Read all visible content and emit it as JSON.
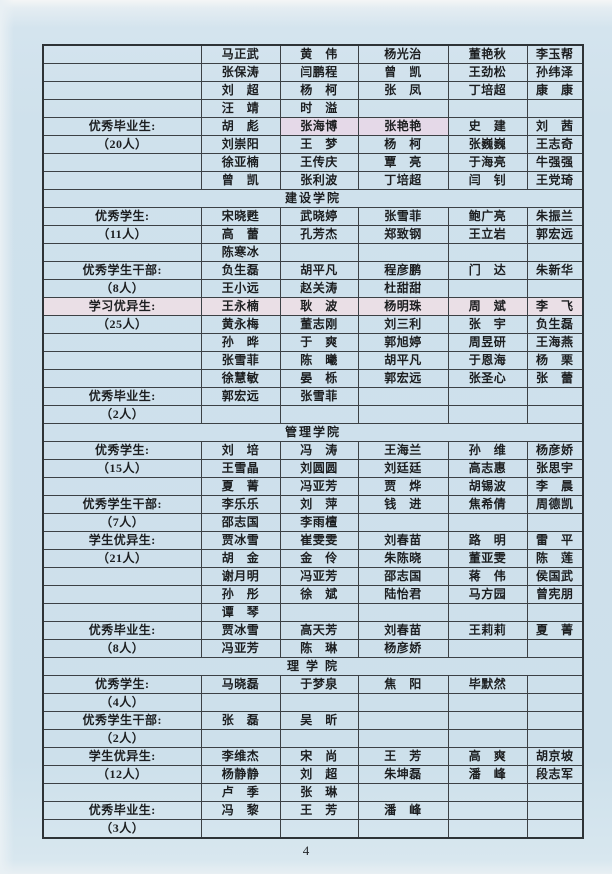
{
  "page": {
    "number": "4"
  },
  "colors": {
    "page_bg": "#cfe1ec",
    "cell_highlight": "#e5d9e8",
    "row_tint": "#eadfe6",
    "border": "#3c4145"
  },
  "table": {
    "columns": 6,
    "sections": [
      {
        "header": null,
        "rows": [
          {
            "label": "",
            "cells": [
              "马正武",
              "黄　伟",
              "杨光治",
              "董艳秋",
              "李玉帮"
            ]
          },
          {
            "label": "",
            "cells": [
              "张保涛",
              "闫鹏程",
              "曾　凯",
              "王劲松",
              "孙纬泽"
            ]
          },
          {
            "label": "",
            "cells": [
              "刘　超",
              "杨　柯",
              "张　凤",
              "丁培超",
              "康　康"
            ]
          },
          {
            "label": "",
            "cells": [
              "汪　靖",
              "时　溢",
              "",
              "",
              ""
            ]
          },
          {
            "label": "优秀毕业生:",
            "cells": [
              "胡　彪",
              "张海博",
              "张艳艳",
              "史　建",
              "刘　茜"
            ],
            "hl": [
              1,
              2
            ]
          },
          {
            "label": "（20人）",
            "cells": [
              "刘崇阳",
              "王　梦",
              "杨　柯",
              "张巍巍",
              "王志奇"
            ]
          },
          {
            "label": "",
            "cells": [
              "徐亚楠",
              "王传庆",
              "覃　亮",
              "于海亮",
              "牛强强"
            ]
          },
          {
            "label": "",
            "cells": [
              "曾　凯",
              "张利波",
              "丁培超",
              "闫　钊",
              "王党琦"
            ]
          }
        ]
      },
      {
        "header": "建设学院",
        "rows": [
          {
            "label": "优秀学生:",
            "cells": [
              "宋晓甦",
              "武晓婷",
              "张雪菲",
              "鲍广亮",
              "朱振兰"
            ]
          },
          {
            "label": "（11人）",
            "cells": [
              "高　蕾",
              "孔芳杰",
              "郑致钢",
              "王立岩",
              "郭宏远"
            ]
          },
          {
            "label": "",
            "cells": [
              "陈寒冰",
              "",
              "",
              "",
              ""
            ]
          },
          {
            "label": "优秀学生干部:",
            "cells": [
              "负生磊",
              "胡平凡",
              "程彦鹏",
              "门　达",
              "朱新华"
            ]
          },
          {
            "label": "（8人）",
            "cells": [
              "王小远",
              "赵关涛",
              "杜甜甜",
              "",
              ""
            ]
          },
          {
            "label": "学习优异生:",
            "cells": [
              "王永楠",
              "耿　波",
              "杨明珠",
              "周　斌",
              "李　飞"
            ],
            "tint": true
          },
          {
            "label": "（25人）",
            "cells": [
              "黄永梅",
              "董志刚",
              "刘三利",
              "张　宇",
              "负生磊"
            ]
          },
          {
            "label": "",
            "cells": [
              "孙　晔",
              "于　爽",
              "郭旭婷",
              "周昱研",
              "王海燕"
            ]
          },
          {
            "label": "",
            "cells": [
              "张雪菲",
              "陈　曦",
              "胡平凡",
              "于恩海",
              "杨　栗"
            ]
          },
          {
            "label": "",
            "cells": [
              "徐慧敏",
              "晏　栎",
              "郭宏远",
              "张圣心",
              "张　蕾"
            ]
          },
          {
            "label": "优秀毕业生:",
            "cells": [
              "郭宏远",
              "张雪菲",
              "",
              "",
              ""
            ]
          },
          {
            "label": "（2人）",
            "cells": [
              "",
              "",
              "",
              "",
              ""
            ]
          }
        ]
      },
      {
        "header": "管理学院",
        "rows": [
          {
            "label": "优秀学生:",
            "cells": [
              "刘　培",
              "冯　涛",
              "王海兰",
              "孙　维",
              "杨彦娇"
            ]
          },
          {
            "label": "（15人）",
            "cells": [
              "王雪晶",
              "刘圆圆",
              "刘廷廷",
              "高志惠",
              "张思宇"
            ]
          },
          {
            "label": "",
            "cells": [
              "夏　菁",
              "冯亚芳",
              "贾　烨",
              "胡锡波",
              "李　晨"
            ]
          },
          {
            "label": "优秀学生干部:",
            "cells": [
              "李乐乐",
              "刘　萍",
              "钱　进",
              "焦希倩",
              "周德凯"
            ]
          },
          {
            "label": "（7人）",
            "cells": [
              "邵志国",
              "李雨檀",
              "",
              "",
              ""
            ]
          },
          {
            "label": "学生优异生:",
            "cells": [
              "贾冰雪",
              "崔雯雯",
              "刘春苗",
              "路　明",
              "雷　平"
            ]
          },
          {
            "label": "（21人）",
            "cells": [
              "胡　金",
              "金　伶",
              "朱陈晓",
              "董亚雯",
              "陈　莲"
            ]
          },
          {
            "label": "",
            "cells": [
              "谢月明",
              "冯亚芳",
              "邵志国",
              "蒋　伟",
              "侯国武"
            ]
          },
          {
            "label": "",
            "cells": [
              "孙　彤",
              "徐　斌",
              "陆怡君",
              "马方园",
              "曾宪朋"
            ]
          },
          {
            "label": "",
            "cells": [
              "谭　琴",
              "",
              "",
              "",
              ""
            ]
          },
          {
            "label": "优秀毕业生:",
            "cells": [
              "贾冰雪",
              "高天芳",
              "刘春苗",
              "王莉莉",
              "夏　菁"
            ]
          },
          {
            "label": "（8人）",
            "cells": [
              "冯亚芳",
              "陈　琳",
              "杨彦娇",
              "",
              ""
            ]
          }
        ]
      },
      {
        "header": "理 学 院",
        "rows": [
          {
            "label": "优秀学生:",
            "cells": [
              "马晓磊",
              "于梦泉",
              "焦　阳",
              "毕默然",
              ""
            ]
          },
          {
            "label": "（4人）",
            "cells": [
              "",
              "",
              "",
              "",
              ""
            ]
          },
          {
            "label": "优秀学生干部:",
            "cells": [
              "张　磊",
              "吴　昕",
              "",
              "",
              ""
            ]
          },
          {
            "label": "（2人）",
            "cells": [
              "",
              "",
              "",
              "",
              ""
            ]
          },
          {
            "label": "学生优异生:",
            "cells": [
              "李维杰",
              "宋　尚",
              "王　芳",
              "高　爽",
              "胡京坡"
            ]
          },
          {
            "label": "（12人）",
            "cells": [
              "杨静静",
              "刘　超",
              "朱坤磊",
              "潘　峰",
              "段志军"
            ]
          },
          {
            "label": "",
            "cells": [
              "卢　季",
              "张　琳",
              "",
              "",
              ""
            ]
          },
          {
            "label": "优秀毕业生:",
            "cells": [
              "冯　黎",
              "王　芳",
              "潘　峰",
              "",
              ""
            ]
          },
          {
            "label": "（3人）",
            "cells": [
              "",
              "",
              "",
              "",
              ""
            ]
          }
        ]
      }
    ]
  }
}
